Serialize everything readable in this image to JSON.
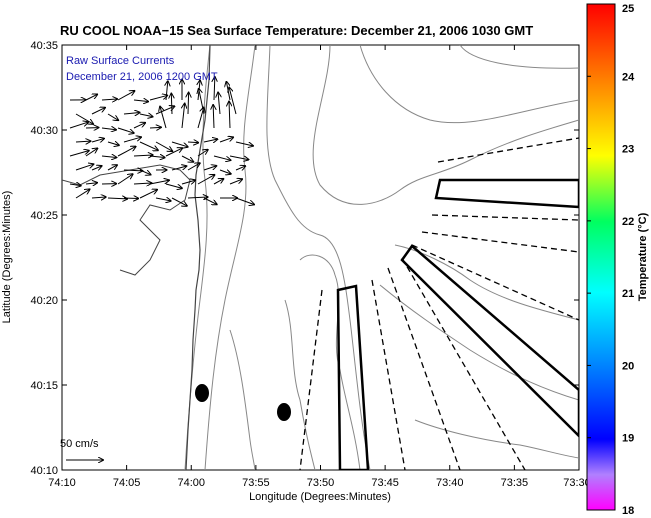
{
  "chart_data": {
    "type": "map",
    "title": "RU COOL  NOAA−15  Sea Surface Temperature:  December 21, 2006 1030 GMT",
    "xlabel": "Longitude (Degrees:Minutes)",
    "ylabel": "Latitude (Degrees:Minutes)",
    "x_ticks": [
      "74:10",
      "74:05",
      "74:00",
      "73:55",
      "73:50",
      "73:45",
      "73:40",
      "73:35",
      "73:30"
    ],
    "y_ticks": [
      "40:10",
      "40:15",
      "40:20",
      "40:25",
      "40:30",
      "40:35"
    ],
    "x_range_min": [
      -70,
      -30
    ],
    "y_range_min": [
      10,
      35
    ],
    "legend_lines": [
      "Raw Surface Currents",
      "December 21, 2006 1200 GMT"
    ],
    "scale_label": "50 cm/s",
    "colorbar": {
      "label": "Temperature (°C)",
      "min": 18,
      "max": 25,
      "ticks": [
        "18",
        "19",
        "20",
        "21",
        "22",
        "23",
        "24",
        "25"
      ]
    },
    "markers": [
      {
        "lon_min": -58.8,
        "lat_min": 14.7
      },
      {
        "lon_min": -52.3,
        "lat_min": 13.5
      }
    ]
  },
  "colors": {
    "title": "#1a1ab0",
    "contour": "#888888",
    "coast": "#444444"
  }
}
